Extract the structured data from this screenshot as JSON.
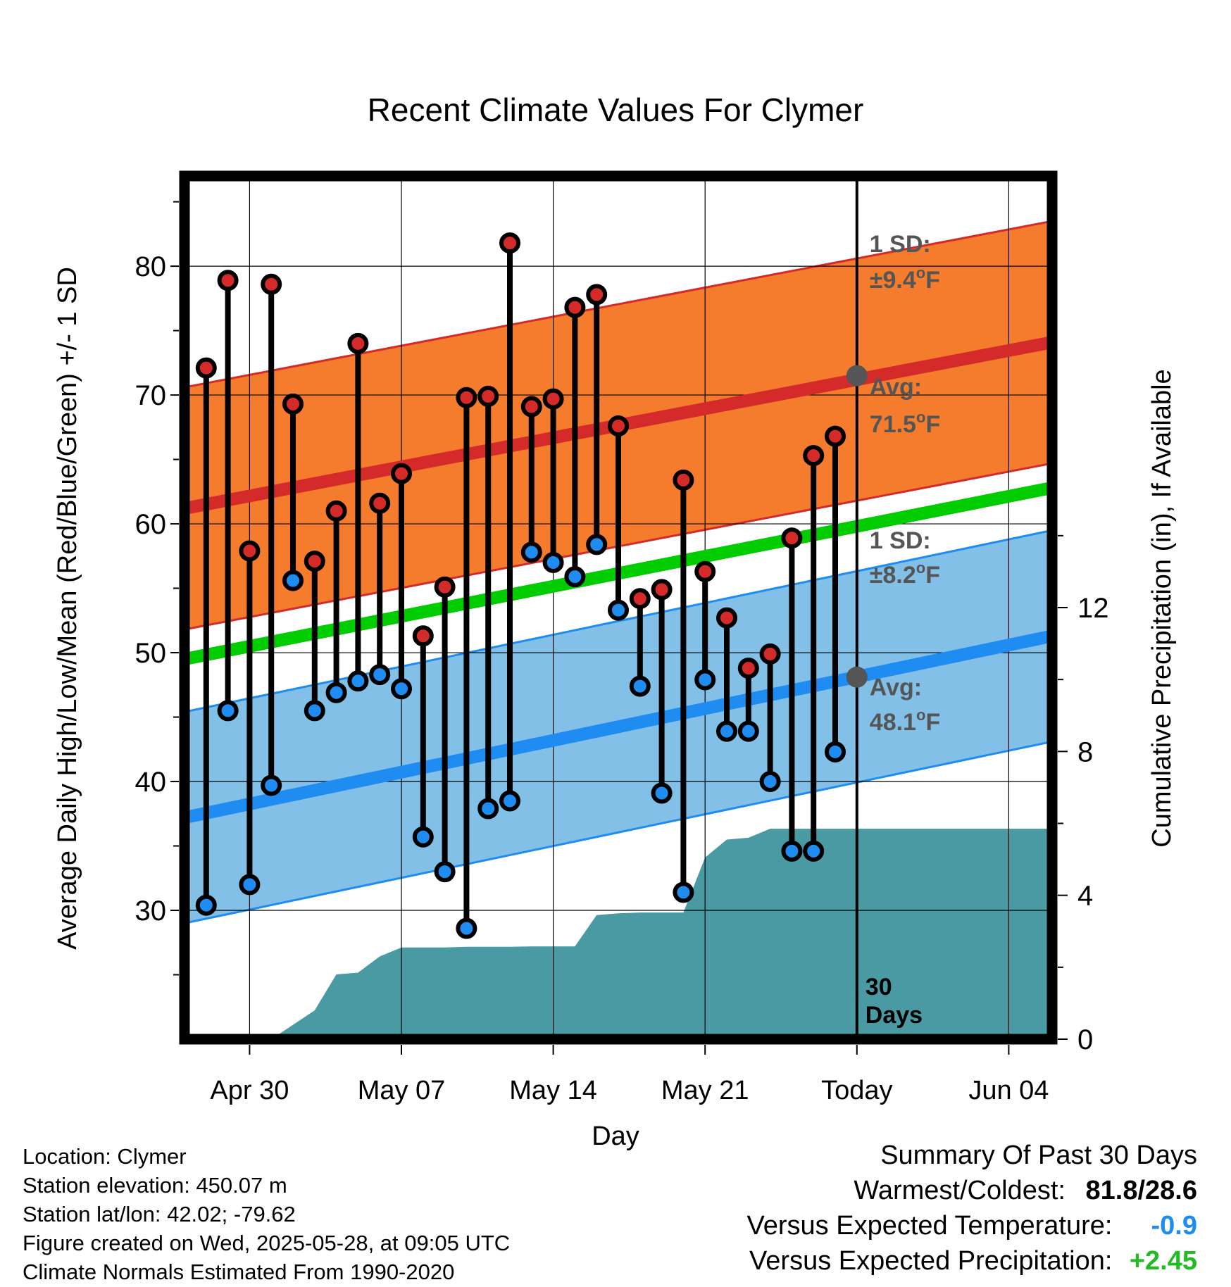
{
  "chart_data": {
    "type": "line",
    "title": "Recent Climate Values For Clymer",
    "xlabel": "Day",
    "ylabel": "Average Daily High/Low/Mean (Red/Blue/Green) +/- 1 SD",
    "y2label": "Cumulative Precipitation (in), If Available",
    "xlim": [
      "2025-04-27",
      "2025-06-06"
    ],
    "ylim": [
      20,
      87
    ],
    "y2lim": [
      0,
      24
    ],
    "xticks": [
      {
        "date": "2025-04-30",
        "label": "Apr 30"
      },
      {
        "date": "2025-05-07",
        "label": "May 07"
      },
      {
        "date": "2025-05-14",
        "label": "May 14"
      },
      {
        "date": "2025-05-21",
        "label": "May 21"
      },
      {
        "date": "2025-05-28",
        "label": "Today"
      },
      {
        "date": "2025-06-04",
        "label": "Jun 04"
      }
    ],
    "yticks": [
      "30",
      "40",
      "50",
      "60",
      "70",
      "80"
    ],
    "y2ticks": [
      "0",
      "4",
      "8",
      "12"
    ],
    "grid": true,
    "today": "2025-05-28",
    "daily": {
      "dates": [
        "2025-04-28",
        "2025-04-29",
        "2025-04-30",
        "2025-05-01",
        "2025-05-02",
        "2025-05-03",
        "2025-05-04",
        "2025-05-05",
        "2025-05-06",
        "2025-05-07",
        "2025-05-08",
        "2025-05-09",
        "2025-05-10",
        "2025-05-11",
        "2025-05-12",
        "2025-05-13",
        "2025-05-14",
        "2025-05-15",
        "2025-05-16",
        "2025-05-17",
        "2025-05-18",
        "2025-05-19",
        "2025-05-20",
        "2025-05-21",
        "2025-05-22",
        "2025-05-23",
        "2025-05-24",
        "2025-05-25",
        "2025-05-26",
        "2025-05-27"
      ],
      "highs": [
        72.1,
        78.9,
        57.9,
        78.6,
        69.3,
        57.1,
        61.0,
        74.0,
        61.6,
        63.9,
        51.3,
        55.1,
        69.8,
        69.9,
        81.8,
        69.1,
        69.7,
        76.8,
        77.8,
        67.6,
        54.2,
        54.9,
        63.4,
        56.3,
        52.7,
        48.8,
        49.9,
        58.9,
        65.3,
        66.8
      ],
      "lows": [
        30.4,
        45.5,
        32.0,
        39.7,
        55.6,
        45.5,
        46.9,
        47.8,
        48.3,
        47.2,
        35.7,
        33.0,
        28.6,
        37.9,
        38.5,
        57.8,
        57.0,
        55.9,
        58.4,
        53.3,
        47.4,
        39.1,
        31.4,
        47.9,
        43.9,
        43.9,
        40.0,
        34.6,
        34.6,
        42.3
      ]
    },
    "normals": {
      "dates": [
        "2025-04-27",
        "2025-06-06"
      ],
      "high_avg": [
        61.2,
        74.1
      ],
      "low_avg": [
        37.2,
        51.3
      ],
      "mean_avg": [
        49.5,
        62.8
      ],
      "high_sd": "±9.4°F",
      "low_sd": "±8.2°F",
      "high_today": "71.5°F",
      "low_today": "48.1°F"
    },
    "precip": {
      "dates": [
        "2025-04-29",
        "2025-04-30",
        "2025-05-01",
        "2025-05-02",
        "2025-05-03",
        "2025-05-04",
        "2025-05-05",
        "2025-05-06",
        "2025-05-07",
        "2025-05-08",
        "2025-05-09",
        "2025-05-10",
        "2025-05-11",
        "2025-05-12",
        "2025-05-13",
        "2025-05-14",
        "2025-05-15",
        "2025-05-16",
        "2025-05-17",
        "2025-05-18",
        "2025-05-19",
        "2025-05-20",
        "2025-05-21",
        "2025-05-22",
        "2025-05-23",
        "2025-05-24",
        "2025-05-25",
        "2025-05-26",
        "2025-05-27",
        "2025-05-28",
        "2025-06-06"
      ],
      "cumulative": [
        0.0,
        0.0,
        0.0,
        0.4,
        0.8,
        1.8,
        1.85,
        2.3,
        2.55,
        2.55,
        2.55,
        2.57,
        2.57,
        2.57,
        2.58,
        2.58,
        2.58,
        3.45,
        3.5,
        3.52,
        3.52,
        3.52,
        5.05,
        5.55,
        5.6,
        5.85,
        5.85,
        5.85,
        5.85,
        5.85,
        5.85
      ]
    },
    "labels": {
      "sd": "1 SD:",
      "avg": "Avg:",
      "days": "30",
      "days_unit": "Days"
    },
    "colors": {
      "high": "#d42a2a",
      "high_band": "#f47c2c",
      "low": "#1e8cf0",
      "low_band": "#82c0e8",
      "mean": "#00cc00",
      "precip": "#4a9aa4",
      "annotation": "#555555"
    }
  },
  "info": {
    "location": "Location: Clymer",
    "elevation": "Station elevation: 450.07 m",
    "latlon": "Station lat/lon: 42.02; -79.62",
    "created": "Figure created on Wed, 2025-05-28, at 09:05 UTC",
    "normals": "Climate Normals Estimated From 1990-2020"
  },
  "summary": {
    "title": "Summary Of Past 30 Days",
    "warm_cold_label": "Warmest/Coldest:",
    "warm_cold_value": "81.8/28.6",
    "temp_label": "Versus Expected Temperature:",
    "temp_value": "-0.9",
    "temp_color": "#1e8cf0",
    "precip_label": "Versus Expected Precipitation:",
    "precip_value": "+2.45",
    "precip_color": "#22bb22"
  }
}
